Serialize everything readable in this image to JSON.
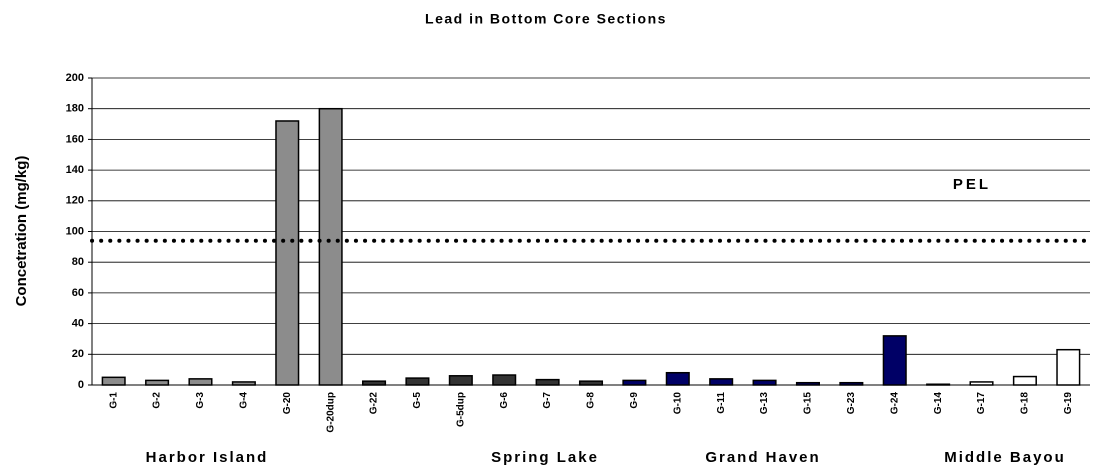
{
  "chart_data": {
    "type": "bar",
    "title": "Lead in Bottom Core Sections",
    "y_label": "Concetration (mg/kg)",
    "categories": [
      "G-1",
      "G-2",
      "G-3",
      "G-4",
      "G-20",
      "G-20dup",
      "G-22",
      "G-5",
      "G-5dup",
      "G-6",
      "G-7",
      "G-8",
      "G-9",
      "G-10",
      "G-11",
      "G-13",
      "G-15",
      "G-23",
      "G-24",
      "G-14",
      "G-17",
      "G-18",
      "G-19"
    ],
    "series": [
      {
        "name": "Harbor Island",
        "color": "#8c8c8c",
        "values": [
          5,
          3,
          4,
          2,
          172,
          180,
          null,
          null,
          null,
          null,
          null,
          null,
          null,
          null,
          null,
          null,
          null,
          null,
          null,
          null,
          null,
          null,
          null
        ]
      },
      {
        "name": "Spring Lake",
        "color": "#333333",
        "values": [
          null,
          null,
          null,
          null,
          null,
          null,
          2.5,
          4.5,
          6,
          6.5,
          3.5,
          2.5,
          null,
          null,
          null,
          null,
          null,
          null,
          null,
          null,
          null,
          null,
          null
        ]
      },
      {
        "name": "Grand Haven",
        "color": "#000066",
        "values": [
          null,
          null,
          null,
          null,
          null,
          null,
          null,
          null,
          null,
          null,
          null,
          null,
          3,
          8,
          4,
          3,
          1.5,
          1.5,
          32,
          null,
          null,
          null,
          null
        ]
      },
      {
        "name": "Middle Bayou",
        "color": "#ffffff",
        "values": [
          null,
          null,
          null,
          null,
          null,
          null,
          null,
          null,
          null,
          null,
          null,
          null,
          null,
          null,
          null,
          null,
          null,
          null,
          null,
          0.5,
          2,
          5.5,
          23
        ]
      }
    ],
    "pel": {
      "value": 94,
      "label": "PEL"
    },
    "ylim": [
      0,
      200
    ],
    "yticks": [
      0,
      20,
      40,
      60,
      80,
      100,
      120,
      140,
      160,
      180,
      200
    ],
    "grid": true
  }
}
